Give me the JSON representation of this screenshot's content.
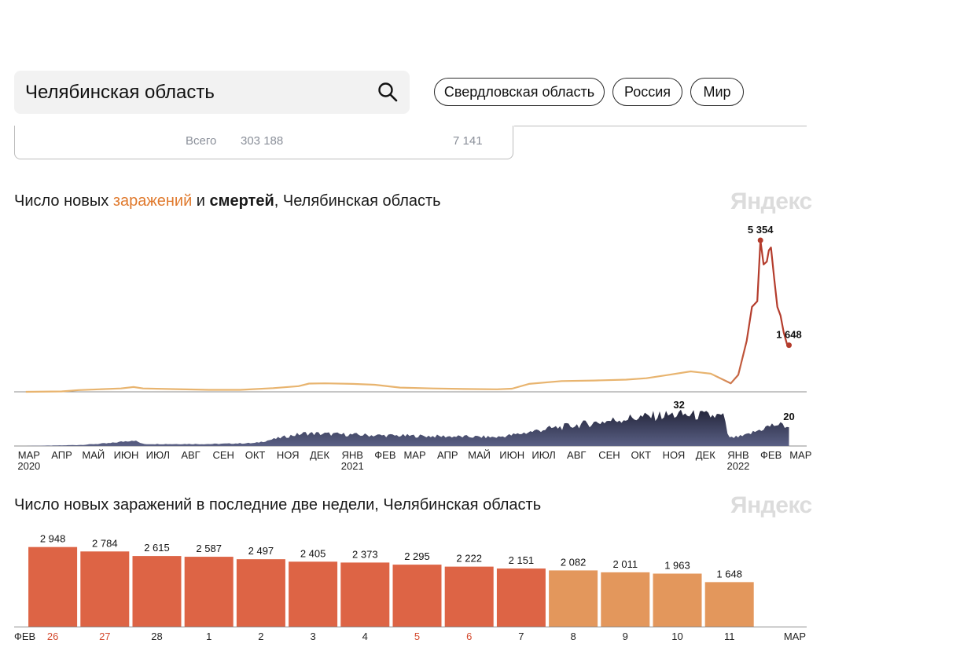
{
  "search": {
    "value": "Челябинская область"
  },
  "region_buttons": [
    {
      "label": "Свердловская область"
    },
    {
      "label": "Россия"
    },
    {
      "label": "Мир"
    }
  ],
  "totals": {
    "label": "Всего",
    "cases": "303 188",
    "deaths": "7 141"
  },
  "chart1": {
    "title_prefix": "Число новых ",
    "title_infections": "заражений",
    "title_and": " и ",
    "title_deaths": "смертей",
    "title_suffix": ", Челябинская область",
    "watermark": "Яндекс"
  },
  "chart2": {
    "title": "Число новых заражений в последние две недели, Челябинская область",
    "watermark": "Яндекс"
  },
  "colors": {
    "infections_early": "#e8b46f",
    "infections_recent": "#b43c2c",
    "deaths_fill": "#5a6085",
    "deaths_fill_dark": "#23253a",
    "bar_red": "#dd6445",
    "bar_orange": "#e3975c",
    "weekend_label": "#d44a2e"
  },
  "chart_data": [
    {
      "type": "line",
      "series": [
        {
          "name": "заражений",
          "points": [
            [
              "2020-03-12",
              0
            ],
            [
              "2020-04-15",
              15
            ],
            [
              "2020-05-01",
              60
            ],
            [
              "2020-05-20",
              90
            ],
            [
              "2020-06-10",
              120
            ],
            [
              "2020-06-22",
              170
            ],
            [
              "2020-07-01",
              120
            ],
            [
              "2020-08-01",
              95
            ],
            [
              "2020-09-01",
              70
            ],
            [
              "2020-10-01",
              70
            ],
            [
              "2020-11-01",
              130
            ],
            [
              "2020-11-25",
              200
            ],
            [
              "2020-12-05",
              290
            ],
            [
              "2020-12-20",
              300
            ],
            [
              "2021-01-15",
              280
            ],
            [
              "2021-02-05",
              250
            ],
            [
              "2021-03-01",
              150
            ],
            [
              "2021-04-01",
              120
            ],
            [
              "2021-05-01",
              100
            ],
            [
              "2021-06-01",
              90
            ],
            [
              "2021-06-15",
              110
            ],
            [
              "2021-07-01",
              280
            ],
            [
              "2021-08-01",
              380
            ],
            [
              "2021-09-01",
              400
            ],
            [
              "2021-10-01",
              430
            ],
            [
              "2021-10-20",
              480
            ],
            [
              "2021-11-10",
              600
            ],
            [
              "2021-12-01",
              720
            ],
            [
              "2021-12-20",
              640
            ],
            [
              "2022-01-08",
              300
            ],
            [
              "2022-01-15",
              600
            ],
            [
              "2022-01-23",
              1800
            ],
            [
              "2022-01-28",
              3000
            ],
            [
              "2022-02-02",
              3200
            ],
            [
              "2022-02-05",
              5354
            ],
            [
              "2022-02-08",
              4500
            ],
            [
              "2022-02-11",
              4600
            ],
            [
              "2022-02-13",
              5000
            ],
            [
              "2022-02-15",
              5100
            ],
            [
              "2022-02-18",
              4000
            ],
            [
              "2022-02-21",
              3000
            ],
            [
              "2022-02-24",
              2700
            ],
            [
              "2022-02-27",
              2100
            ],
            [
              "2022-03-02",
              1700
            ],
            [
              "2022-03-04",
              1648
            ]
          ]
        },
        {
          "name": "смертей",
          "points": [
            [
              "2020-03-12",
              0
            ],
            [
              "2020-05-01",
              1
            ],
            [
              "2020-06-01",
              3
            ],
            [
              "2020-06-22",
              6
            ],
            [
              "2020-07-01",
              2
            ],
            [
              "2020-09-01",
              2
            ],
            [
              "2020-10-15",
              3
            ],
            [
              "2020-11-15",
              10
            ],
            [
              "2020-12-01",
              13
            ],
            [
              "2021-01-01",
              12
            ],
            [
              "2021-02-01",
              11
            ],
            [
              "2021-04-01",
              10
            ],
            [
              "2021-06-01",
              9
            ],
            [
              "2021-06-20",
              12
            ],
            [
              "2021-07-15",
              17
            ],
            [
              "2021-08-20",
              22
            ],
            [
              "2021-10-01",
              28
            ],
            [
              "2021-11-01",
              31
            ],
            [
              "2021-11-20",
              32
            ],
            [
              "2021-12-15",
              31
            ],
            [
              "2022-01-01",
              30
            ],
            [
              "2022-01-06",
              8
            ],
            [
              "2022-01-20",
              10
            ],
            [
              "2022-02-01",
              15
            ],
            [
              "2022-02-10",
              19
            ],
            [
              "2022-02-20",
              22
            ],
            [
              "2022-03-04",
              20
            ]
          ]
        }
      ],
      "annotations": [
        {
          "series": "заражений",
          "x": "2022-02-05",
          "label": "5 354"
        },
        {
          "series": "заражений",
          "x": "2022-03-04",
          "label": "1 648"
        },
        {
          "series": "смертей",
          "x": "2021-11-20",
          "label": "32"
        },
        {
          "series": "смертей",
          "x": "2022-03-04",
          "label": "20"
        }
      ],
      "x_tick_labels": [
        {
          "date": "2020-03-15",
          "label": "МАР",
          "year": "2020"
        },
        {
          "date": "2020-04-15",
          "label": "АПР"
        },
        {
          "date": "2020-05-15",
          "label": "МАЙ"
        },
        {
          "date": "2020-06-15",
          "label": "ИЮН"
        },
        {
          "date": "2020-07-15",
          "label": "ИЮЛ"
        },
        {
          "date": "2020-08-15",
          "label": "АВГ"
        },
        {
          "date": "2020-09-15",
          "label": "СЕН"
        },
        {
          "date": "2020-10-15",
          "label": "ОКТ"
        },
        {
          "date": "2020-11-15",
          "label": "НОЯ"
        },
        {
          "date": "2020-12-15",
          "label": "ДЕК"
        },
        {
          "date": "2021-01-15",
          "label": "ЯНВ",
          "year": "2021"
        },
        {
          "date": "2021-02-15",
          "label": "ФЕВ"
        },
        {
          "date": "2021-03-15",
          "label": "МАР"
        },
        {
          "date": "2021-04-15",
          "label": "АПР"
        },
        {
          "date": "2021-05-15",
          "label": "МАЙ"
        },
        {
          "date": "2021-06-15",
          "label": "ИЮН"
        },
        {
          "date": "2021-07-15",
          "label": "ИЮЛ"
        },
        {
          "date": "2021-08-15",
          "label": "АВГ"
        },
        {
          "date": "2021-09-15",
          "label": "СЕН"
        },
        {
          "date": "2021-10-15",
          "label": "ОКТ"
        },
        {
          "date": "2021-11-15",
          "label": "НОЯ"
        },
        {
          "date": "2021-12-15",
          "label": "ДЕК"
        },
        {
          "date": "2022-01-15",
          "label": "ЯНВ",
          "year": "2022"
        },
        {
          "date": "2022-02-15",
          "label": "ФЕВ"
        },
        {
          "date": "2022-03-15",
          "label": "МАР"
        }
      ]
    },
    {
      "type": "bar",
      "categories": [
        "26",
        "27",
        "28",
        "1",
        "2",
        "3",
        "4",
        "5",
        "6",
        "7",
        "8",
        "9",
        "10",
        "11"
      ],
      "weekend_categories": [
        "26",
        "27",
        "5",
        "6"
      ],
      "values": [
        2948,
        2784,
        2615,
        2587,
        2497,
        2405,
        2373,
        2295,
        2222,
        2151,
        2082,
        2011,
        1963,
        1648
      ],
      "value_labels": [
        "2 948",
        "2 784",
        "2 615",
        "2 587",
        "2 497",
        "2 405",
        "2 373",
        "2 295",
        "2 222",
        "2 151",
        "2 082",
        "2 011",
        "1 963",
        "1 648"
      ],
      "month_start_label": "ФЕВ",
      "month_end_label": "МАР",
      "ylim": [
        0,
        3200
      ]
    }
  ]
}
